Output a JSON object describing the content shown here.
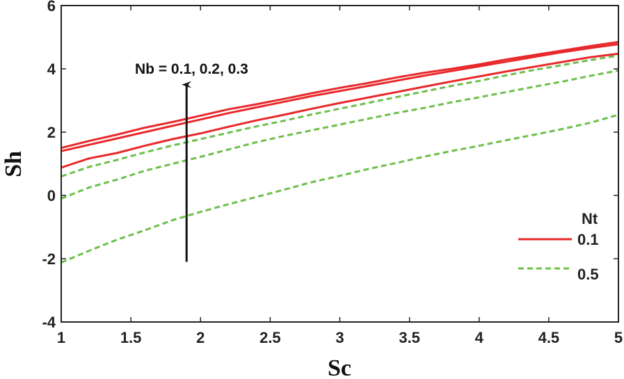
{
  "chart_data": {
    "type": "line",
    "xlabel": "Sc",
    "ylabel": "Sh",
    "xlim": [
      1,
      5
    ],
    "ylim": [
      -4,
      6
    ],
    "xticks": [
      "1",
      "1.5",
      "2",
      "2.5",
      "3",
      "3.5",
      "4",
      "4.5",
      "5"
    ],
    "yticks": [
      "-4",
      "-2",
      "0",
      "2",
      "4",
      "6"
    ],
    "grid": false,
    "legend": {
      "title": "Nt",
      "placement": "lower-right",
      "entries": [
        "0.1",
        "0.5"
      ]
    },
    "annotation": {
      "text": "Nb = 0.1, 0.2, 0.3",
      "arrow_from": [
        1.9,
        -2.1
      ],
      "arrow_to": [
        1.9,
        3.5
      ]
    },
    "x": [
      1,
      1.2,
      1.4,
      1.6,
      1.8,
      2,
      2.2,
      2.4,
      2.6,
      2.8,
      3,
      3.2,
      3.4,
      3.6,
      3.8,
      4,
      4.2,
      4.4,
      4.6,
      4.8,
      5
    ],
    "series": [
      {
        "group": "0.1",
        "color": "#e8282b",
        "style": "solid",
        "values": [
          0.88,
          1.17,
          1.34,
          1.57,
          1.78,
          1.96,
          2.17,
          2.37,
          2.55,
          2.74,
          2.92,
          3.09,
          3.26,
          3.43,
          3.6,
          3.76,
          3.92,
          4.07,
          4.22,
          4.37,
          4.48
        ]
      },
      {
        "group": "0.1",
        "color": "#e8282b",
        "style": "solid",
        "values": [
          1.4,
          1.6,
          1.8,
          2.0,
          2.2,
          2.4,
          2.6,
          2.78,
          2.96,
          3.14,
          3.3,
          3.46,
          3.62,
          3.78,
          3.93,
          4.08,
          4.23,
          4.38,
          4.53,
          4.66,
          4.78
        ]
      },
      {
        "group": "0.1",
        "color": "#e8282b",
        "style": "solid",
        "values": [
          1.5,
          1.72,
          1.92,
          2.14,
          2.32,
          2.52,
          2.72,
          2.88,
          3.05,
          3.23,
          3.4,
          3.55,
          3.72,
          3.87,
          4.0,
          4.14,
          4.3,
          4.44,
          4.58,
          4.72,
          4.85
        ]
      },
      {
        "group": "0.5",
        "color": "#6cbf4a",
        "style": "dashed",
        "values": [
          -2.12,
          -1.75,
          -1.4,
          -1.1,
          -0.78,
          -0.52,
          -0.28,
          -0.05,
          0.18,
          0.42,
          0.62,
          0.83,
          1.02,
          1.22,
          1.4,
          1.57,
          1.75,
          1.92,
          2.1,
          2.3,
          2.55
        ]
      },
      {
        "group": "0.5",
        "color": "#6cbf4a",
        "style": "dashed",
        "values": [
          -0.1,
          0.25,
          0.5,
          0.78,
          1.0,
          1.22,
          1.45,
          1.68,
          1.88,
          2.06,
          2.24,
          2.42,
          2.6,
          2.76,
          2.94,
          3.1,
          3.27,
          3.44,
          3.6,
          3.78,
          3.95
        ]
      },
      {
        "group": "0.5",
        "color": "#6cbf4a",
        "style": "dashed",
        "values": [
          0.6,
          0.9,
          1.12,
          1.36,
          1.58,
          1.78,
          1.98,
          2.18,
          2.36,
          2.56,
          2.74,
          2.92,
          3.1,
          3.28,
          3.46,
          3.62,
          3.8,
          3.97,
          4.12,
          4.28,
          4.42
        ]
      }
    ]
  }
}
